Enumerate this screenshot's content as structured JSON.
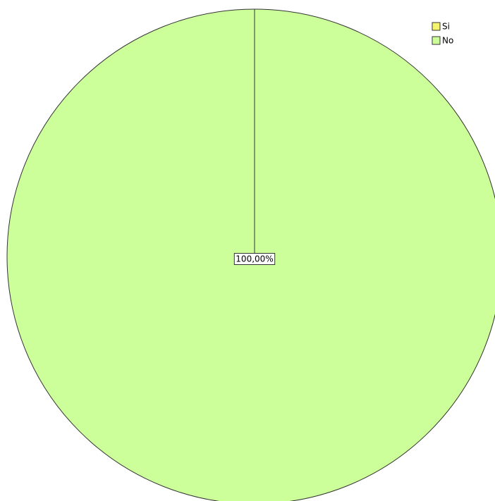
{
  "chart_data": {
    "type": "pie",
    "categories": [
      "Si",
      "No"
    ],
    "values": [
      0,
      100
    ],
    "value_labels": [
      null,
      "100,00%"
    ],
    "colors": [
      "#f4f46e",
      "#ccff99"
    ],
    "legend": "top-right"
  }
}
